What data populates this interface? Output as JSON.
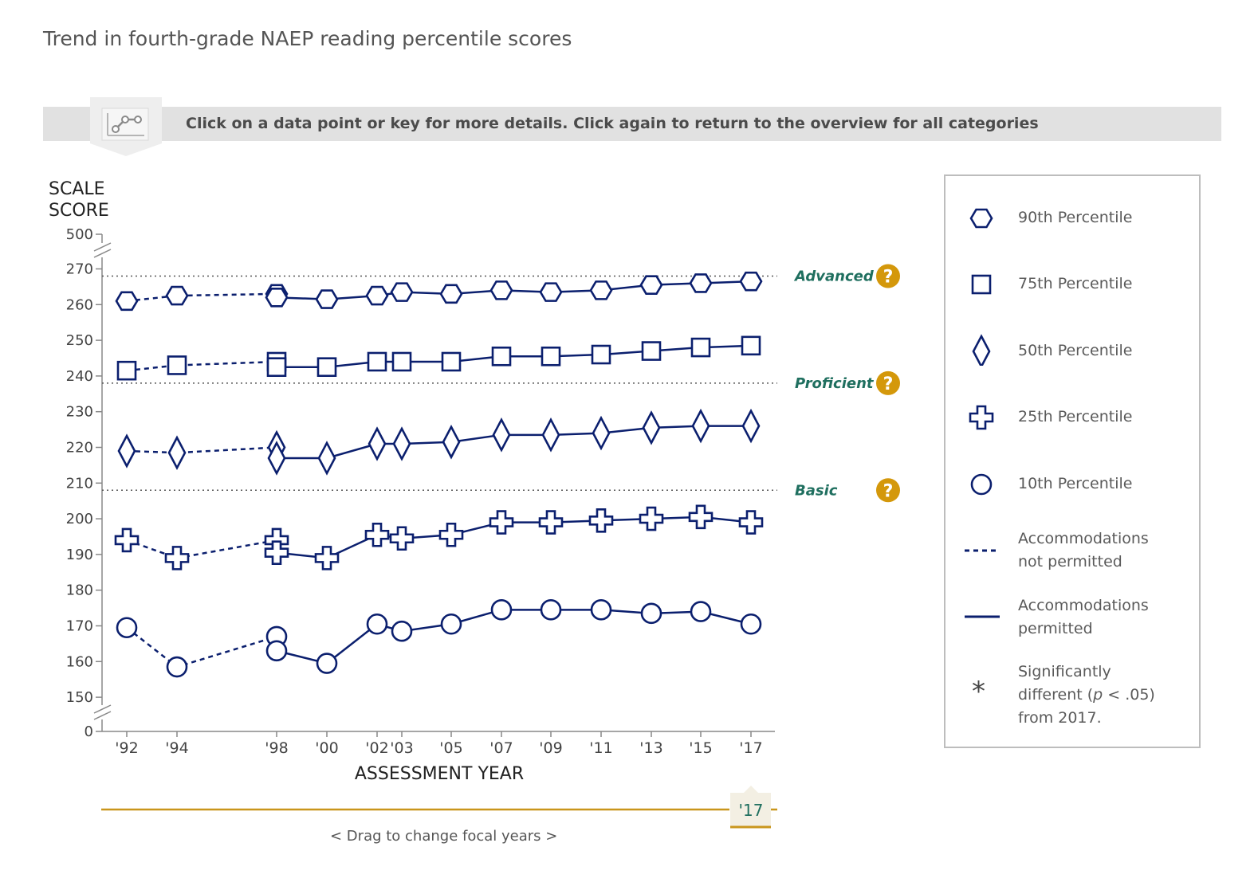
{
  "title": "Trend in fourth-grade NAEP reading percentile scores",
  "banner": {
    "text": "Click on a data point or key for more details. Click again to return to the overview for all categories",
    "icon": "chart-line-icon"
  },
  "colors": {
    "series": "#0b1f6e",
    "achievement_label": "#1f6f5f",
    "help": "#d4980b",
    "axis": "#888888",
    "slider": "#c9961c"
  },
  "chart_data": {
    "type": "line",
    "ylabel": "SCALE SCORE",
    "xlabel": "ASSESSMENT YEAR",
    "y_ticks": [
      "0",
      "150",
      "160",
      "170",
      "180",
      "190",
      "200",
      "210",
      "220",
      "230",
      "240",
      "250",
      "260",
      "270",
      "500"
    ],
    "ylim": [
      150,
      270
    ],
    "axis_breaks": [
      "0-150",
      "270-500"
    ],
    "x_ticks": [
      "'92",
      "'94",
      "'98",
      "'00",
      "'02",
      "'03",
      "'05",
      "'07",
      "'09",
      "'11",
      "'13",
      "'15",
      "'17"
    ],
    "achievement_levels": [
      {
        "label": "Advanced",
        "score": 268
      },
      {
        "label": "Proficient",
        "score": 238
      },
      {
        "label": "Basic",
        "score": 208
      }
    ],
    "series": [
      {
        "name": "90th Percentile",
        "marker": "hexagon",
        "not_permitted": [
          [
            1992,
            261
          ],
          [
            1994,
            262.5
          ],
          [
            1998,
            263
          ]
        ],
        "permitted": [
          [
            1998,
            262
          ],
          [
            2000,
            261.5
          ],
          [
            2002,
            262.5
          ],
          [
            2003,
            263.5
          ],
          [
            2005,
            263
          ],
          [
            2007,
            264
          ],
          [
            2009,
            263.5
          ],
          [
            2011,
            264
          ],
          [
            2013,
            265.5
          ],
          [
            2015,
            266
          ],
          [
            2017,
            266.5
          ]
        ]
      },
      {
        "name": "75th Percentile",
        "marker": "square",
        "not_permitted": [
          [
            1992,
            241.5
          ],
          [
            1994,
            243
          ],
          [
            1998,
            244
          ]
        ],
        "permitted": [
          [
            1998,
            242.5
          ],
          [
            2000,
            242.5
          ],
          [
            2002,
            244
          ],
          [
            2003,
            244
          ],
          [
            2005,
            244
          ],
          [
            2007,
            245.5
          ],
          [
            2009,
            245.5
          ],
          [
            2011,
            246
          ],
          [
            2013,
            247
          ],
          [
            2015,
            248
          ],
          [
            2017,
            248.5
          ]
        ]
      },
      {
        "name": "50th Percentile",
        "marker": "diamond",
        "not_permitted": [
          [
            1992,
            219
          ],
          [
            1994,
            218.5
          ],
          [
            1998,
            220
          ]
        ],
        "permitted": [
          [
            1998,
            217
          ],
          [
            2000,
            217
          ],
          [
            2002,
            221
          ],
          [
            2003,
            221
          ],
          [
            2005,
            221.5
          ],
          [
            2007,
            223.5
          ],
          [
            2009,
            223.5
          ],
          [
            2011,
            224
          ],
          [
            2013,
            225.5
          ],
          [
            2015,
            226
          ],
          [
            2017,
            226
          ]
        ]
      },
      {
        "name": "25th Percentile",
        "marker": "cross",
        "not_permitted": [
          [
            1992,
            194
          ],
          [
            1994,
            189
          ],
          [
            1998,
            194
          ]
        ],
        "permitted": [
          [
            1998,
            190.5
          ],
          [
            2000,
            189
          ],
          [
            2002,
            195.5
          ],
          [
            2003,
            194.5
          ],
          [
            2005,
            195.5
          ],
          [
            2007,
            199
          ],
          [
            2009,
            199
          ],
          [
            2011,
            199.5
          ],
          [
            2013,
            200
          ],
          [
            2015,
            200.5
          ],
          [
            2017,
            199
          ]
        ]
      },
      {
        "name": "10th Percentile",
        "marker": "circle",
        "not_permitted": [
          [
            1992,
            169.5
          ],
          [
            1994,
            158.5
          ],
          [
            1998,
            167
          ]
        ],
        "permitted": [
          [
            1998,
            163
          ],
          [
            2000,
            159.5
          ],
          [
            2002,
            170.5
          ],
          [
            2003,
            168.5
          ],
          [
            2005,
            170.5
          ],
          [
            2007,
            174.5
          ],
          [
            2009,
            174.5
          ],
          [
            2011,
            174.5
          ],
          [
            2013,
            173.5
          ],
          [
            2015,
            174
          ],
          [
            2017,
            170.5
          ]
        ]
      }
    ]
  },
  "legend": {
    "items": [
      {
        "label": "90th Percentile",
        "icon": "hexagon-icon"
      },
      {
        "label": "75th Percentile",
        "icon": "square-icon"
      },
      {
        "label": "50th Percentile",
        "icon": "diamond-icon"
      },
      {
        "label": "25th Percentile",
        "icon": "cross-icon"
      },
      {
        "label": "10th Percentile",
        "icon": "circle-icon"
      }
    ],
    "not_permitted_line1": "Accommodations",
    "not_permitted_line2": "not permitted",
    "permitted_line1": "Accommodations",
    "permitted_line2": "permitted",
    "sig_line1": "Significantly",
    "sig_line2_pre": "different (",
    "sig_line2_p": "p",
    "sig_line2_post": " < .05)",
    "sig_line3": "from 2017.",
    "sig_symbol": "*"
  },
  "slider": {
    "focal_year": "'17",
    "hint": "<  Drag to change focal years  >"
  },
  "help_symbol": "?"
}
